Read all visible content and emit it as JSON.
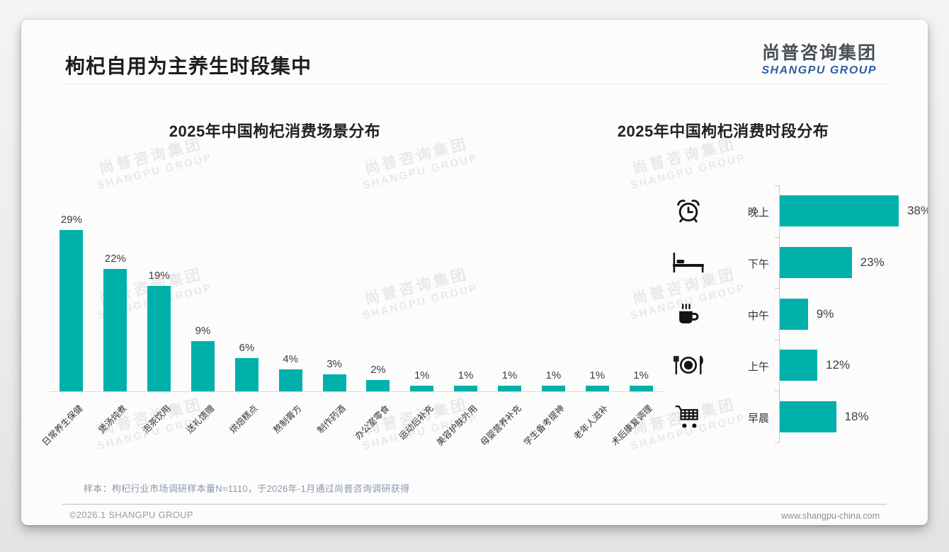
{
  "header": {
    "title": "枸杞自用为主养生时段集中",
    "logo_cn": "尚普咨询集团",
    "logo_en": "SHANGPU GROUP"
  },
  "watermark": {
    "line1": "尚普咨询集团",
    "line2": "SHANGPU GROUP"
  },
  "colors": {
    "bar": "#00b0ab",
    "logo_blue": "#2e5f9e",
    "logo_dark": "#49505a"
  },
  "chart_data": [
    {
      "type": "bar",
      "orientation": "vertical",
      "title": "2025年中国枸杞消费场景分布",
      "categories": [
        "日常养生保健",
        "煲汤炖煮",
        "泡茶饮用",
        "送礼馈赠",
        "烘焙糕点",
        "熬制膏方",
        "制作药酒",
        "办公室零食",
        "运动后补充",
        "美容护肤外用",
        "母婴营养补充",
        "学生备考提神",
        "老年人滋补",
        "术后康复调理"
      ],
      "values": [
        29,
        22,
        19,
        9,
        6,
        4,
        3,
        2,
        1,
        1,
        1,
        1,
        1,
        1
      ],
      "unit": "%",
      "ylim": [
        0,
        30
      ],
      "data_labels": true,
      "grid": false,
      "bar_color": "#00b0ab"
    },
    {
      "type": "bar",
      "orientation": "horizontal",
      "title": "2025年中国枸杞消费时段分布",
      "categories": [
        "晚上",
        "下午",
        "中午",
        "上午",
        "早晨"
      ],
      "values": [
        38,
        23,
        9,
        12,
        18
      ],
      "icons": [
        "alarm-clock-icon",
        "bed-icon",
        "coffee-mug-icon",
        "dining-plate-icon",
        "shopping-cart-icon"
      ],
      "unit": "%",
      "xlim": [
        0,
        40
      ],
      "data_labels": true,
      "grid": false,
      "bar_color": "#00b0ab"
    }
  ],
  "footer": {
    "note": "样本：枸杞行业市场调研样本量N=1110，于2026年-1月通过尚普咨询调研获得",
    "copyright": "©2026.1 SHANGPU GROUP",
    "website": "www.shangpu-china.com"
  }
}
